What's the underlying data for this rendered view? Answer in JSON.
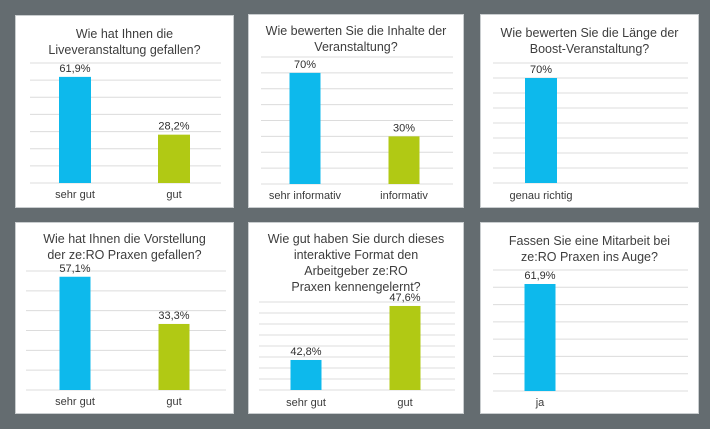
{
  "colors": {
    "background": "#646c70",
    "primary_bar": "#0db9ec",
    "secondary_bar": "#b1c914"
  },
  "chart_data": [
    {
      "type": "bar",
      "title": "Wie hat Ihnen die\nLiveveranstaltung gefallen?",
      "categories": [
        "sehr gut",
        "gut"
      ],
      "values": [
        61.9,
        28.2
      ],
      "value_labels": [
        "61,9%",
        "28,2%"
      ],
      "colors": [
        "#0db9ec",
        "#b1c914"
      ],
      "ylim": [
        0,
        70
      ],
      "gridlines": 8,
      "grid": true,
      "xlabel": "",
      "ylabel": ""
    },
    {
      "type": "bar",
      "title": "Wie bewerten Sie die Inhalte der\nVeranstaltung?",
      "categories": [
        "sehr informativ",
        "informativ"
      ],
      "values": [
        70,
        30
      ],
      "value_labels": [
        "70%",
        "30%"
      ],
      "colors": [
        "#0db9ec",
        "#b1c914"
      ],
      "ylim": [
        0,
        80
      ],
      "gridlines": 9,
      "grid": true,
      "xlabel": "",
      "ylabel": ""
    },
    {
      "type": "bar",
      "title": "Wie bewerten Sie die Länge der\nBoost-Veranstaltung?",
      "categories": [
        "genau richtig"
      ],
      "values": [
        70
      ],
      "value_labels": [
        "70%"
      ],
      "colors": [
        "#0db9ec"
      ],
      "ylim": [
        0,
        80
      ],
      "gridlines": 9,
      "grid": true,
      "xlabel": "",
      "ylabel": ""
    },
    {
      "type": "bar",
      "title": "Wie hat Ihnen die Vorstellung\nder ze:RO Praxen gefallen?",
      "categories": [
        "sehr gut",
        "gut"
      ],
      "values": [
        57.1,
        33.3
      ],
      "value_labels": [
        "57,1%",
        "33,3%"
      ],
      "colors": [
        "#0db9ec",
        "#b1c914"
      ],
      "ylim": [
        0,
        60
      ],
      "gridlines": 7,
      "grid": true,
      "xlabel": "",
      "ylabel": ""
    },
    {
      "type": "bar",
      "title": "Wie gut haben Sie durch dieses\ninteraktive Format den\nArbeitgeber ze:RO\nPraxen kennengelernt?",
      "categories": [
        "sehr gut",
        "gut"
      ],
      "values": [
        42.8,
        47.6
      ],
      "value_labels": [
        "42,8%",
        "47,6%"
      ],
      "display_levels": [
        27.3,
        76.4
      ],
      "colors": [
        "#0db9ec",
        "#b1c914"
      ],
      "ylim": [
        0,
        80
      ],
      "gridlines": 9,
      "grid": true,
      "xlabel": "",
      "ylabel": ""
    },
    {
      "type": "bar",
      "title": "Fassen Sie eine Mitarbeit bei\nze:RO Praxen ins Auge?",
      "categories": [
        "ja"
      ],
      "values": [
        61.9
      ],
      "value_labels": [
        "61,9%"
      ],
      "colors": [
        "#0db9ec"
      ],
      "ylim": [
        0,
        70
      ],
      "gridlines": 8,
      "grid": true,
      "xlabel": "",
      "ylabel": ""
    }
  ]
}
